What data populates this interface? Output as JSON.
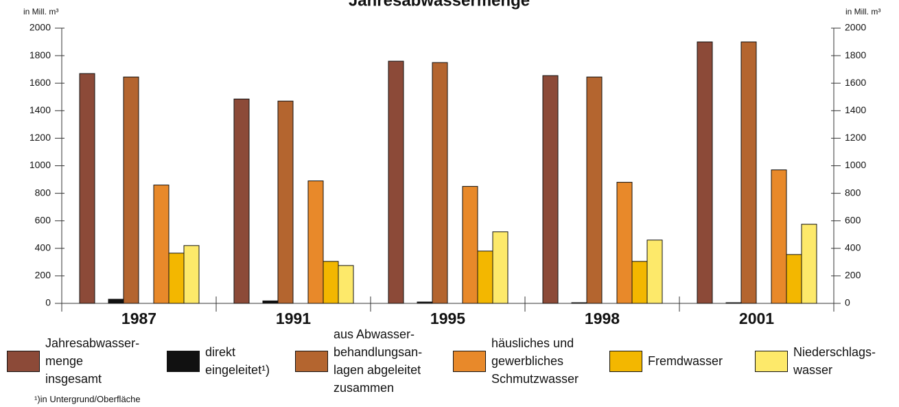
{
  "chart_data": {
    "type": "bar",
    "title": "Jahresabwassermenge",
    "ylabel": "in Mill. m³",
    "y2label": "in Mill. m³",
    "categories": [
      "1987",
      "1991",
      "1995",
      "1998",
      "2001"
    ],
    "series": [
      {
        "name": "Jahresabwasser-\nmenge\ninsgesamt",
        "color": "#8c4a38",
        "values": [
          1670,
          1485,
          1760,
          1655,
          1900
        ]
      },
      {
        "name": "direkt\neingeleitet¹)",
        "color": "#111111",
        "values": [
          30,
          18,
          10,
          5,
          5
        ]
      },
      {
        "name": "aus Abwasser-\nbehandlungsan-\nlagen abgeleitet\nzusammen",
        "color": "#b4652f",
        "values": [
          1645,
          1470,
          1750,
          1645,
          1900
        ]
      },
      {
        "name": "häusliches und\ngewerbliches\nSchmutzwasser",
        "color": "#e8892a",
        "values": [
          860,
          890,
          850,
          880,
          970
        ]
      },
      {
        "name": "Fremdwasser",
        "color": "#f3b700",
        "values": [
          365,
          305,
          380,
          305,
          355
        ]
      },
      {
        "name": "Niederschlags-\nwasser",
        "color": "#fde96a",
        "values": [
          420,
          275,
          520,
          460,
          575
        ]
      }
    ],
    "ylim": [
      0,
      2000
    ],
    "yticks": [
      0,
      200,
      400,
      600,
      800,
      1000,
      1200,
      1400,
      1600,
      1800,
      2000
    ],
    "y2lim": [
      0,
      2000
    ],
    "y2ticks": [
      0,
      200,
      400,
      600,
      800,
      1000,
      1200,
      1400,
      1600,
      1800,
      2000
    ],
    "footnote": "¹)in Untergrund/Oberfläche"
  }
}
